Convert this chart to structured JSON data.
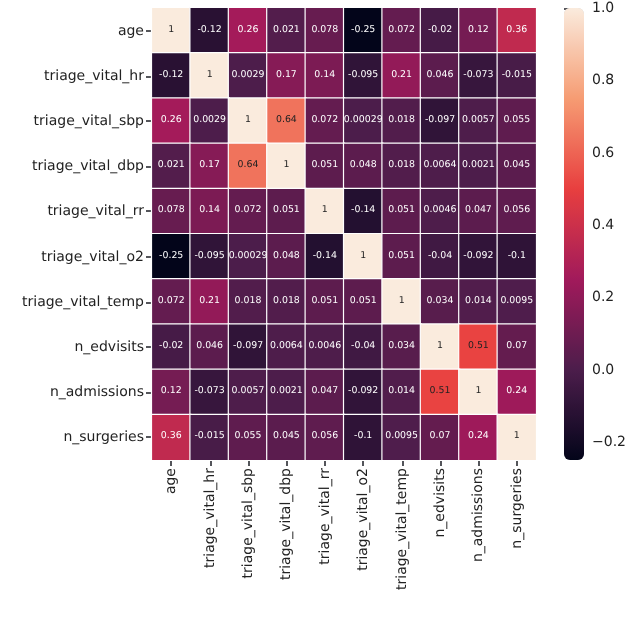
{
  "chart_data": {
    "type": "heatmap",
    "categories": [
      "age",
      "triage_vital_hr",
      "triage_vital_sbp",
      "triage_vital_dbp",
      "triage_vital_rr",
      "triage_vital_o2",
      "triage_vital_temp",
      "n_edvisits",
      "n_admissions",
      "n_surgeries"
    ],
    "y_categories": [
      "age",
      "triage_vital_hr",
      "triage_vital_sbp",
      "triage_vital_dbp",
      "triage_vital_rr",
      "triage_vital_o2",
      "triage_vital_temp",
      "n_edvisits",
      "n_admissions",
      "n_surgeries"
    ],
    "cells": [
      [
        1,
        -0.12,
        0.26,
        0.021,
        0.078,
        -0.25,
        0.072,
        -0.02,
        0.12,
        0.36
      ],
      [
        -0.12,
        1,
        0.0029,
        0.17,
        0.14,
        -0.095,
        0.21,
        0.046,
        -0.073,
        -0.015
      ],
      [
        0.26,
        0.0029,
        1,
        0.64,
        0.072,
        0.00029,
        0.018,
        -0.097,
        0.0057,
        0.055
      ],
      [
        0.021,
        0.17,
        0.64,
        1,
        0.051,
        0.048,
        0.018,
        0.0064,
        0.0021,
        0.045
      ],
      [
        0.078,
        0.14,
        0.072,
        0.051,
        1,
        -0.14,
        0.051,
        0.0046,
        0.047,
        0.056
      ],
      [
        -0.25,
        -0.095,
        0.00029,
        0.048,
        -0.14,
        1,
        0.051,
        -0.04,
        -0.092,
        -0.1
      ],
      [
        0.072,
        0.21,
        0.018,
        0.018,
        0.051,
        0.051,
        1,
        0.034,
        0.014,
        0.0095
      ],
      [
        -0.02,
        0.046,
        -0.097,
        0.0064,
        0.0046,
        -0.04,
        0.034,
        1,
        0.51,
        0.07
      ],
      [
        0.12,
        -0.073,
        0.0057,
        0.0021,
        0.047,
        -0.092,
        0.014,
        0.51,
        1,
        0.24
      ],
      [
        0.36,
        -0.015,
        0.055,
        0.045,
        0.056,
        -0.1,
        0.0095,
        0.07,
        0.24,
        1
      ]
    ],
    "clim": [
      -0.25,
      1
    ],
    "cticks": [
      {
        "value": -0.2,
        "label": "−0.2"
      },
      {
        "value": 0,
        "label": "0.0"
      },
      {
        "value": 0.2,
        "label": "0.2"
      },
      {
        "value": 0.4,
        "label": "0.4"
      },
      {
        "value": 0.6,
        "label": "0.6"
      },
      {
        "value": 0.8,
        "label": "0.8"
      },
      {
        "value": 1,
        "label": "1.0"
      }
    ],
    "data_labels": true
  }
}
